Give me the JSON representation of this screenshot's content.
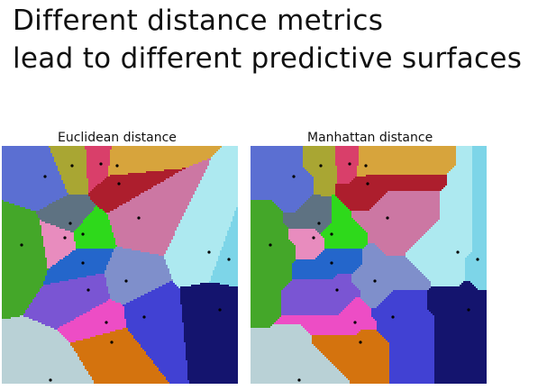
{
  "slide": {
    "title_line1": "Different distance metrics",
    "title_line2": "lead to different predictive surfaces"
  },
  "panels": [
    {
      "label": "Euclidean distance",
      "metric": "euclidean"
    },
    {
      "label": "Manhattan distance",
      "metric": "manhattan"
    }
  ],
  "colors": {
    "background": "#ffffff",
    "point": "#000000",
    "regions": [
      "#5b6fd2",
      "#a9a633",
      "#d93f6a",
      "#d7a43c",
      "#ad1e2d",
      "#5e7282",
      "#2ed91b",
      "#cc77a3",
      "#ade9f0",
      "#7dd5e8",
      "#e88cbe",
      "#44a729",
      "#2466cb",
      "#7f8fcb",
      "#7a55d3",
      "#ed4dc5",
      "#4141d3",
      "#14146e",
      "#b9d1d6",
      "#d4730e"
    ]
  }
}
